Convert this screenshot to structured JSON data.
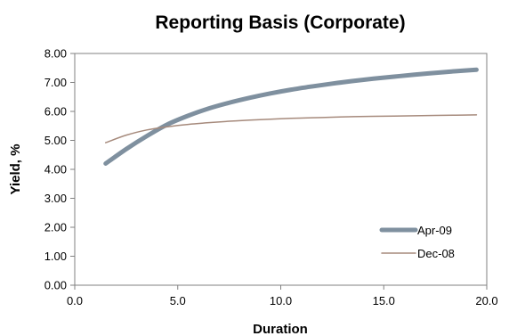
{
  "chart_data": {
    "type": "line",
    "title": "Reporting Basis (Corporate)",
    "xlabel": "Duration",
    "ylabel": "Yield, %",
    "xlim": [
      0,
      20
    ],
    "ylim": [
      0,
      8
    ],
    "x_ticks": [
      "0.0",
      "5.0",
      "10.0",
      "15.0",
      "20.0"
    ],
    "y_ticks": [
      "0.00",
      "1.00",
      "2.00",
      "3.00",
      "4.00",
      "5.00",
      "6.00",
      "7.00",
      "8.00"
    ],
    "grid": false,
    "legend_position": "bottom-right",
    "series": [
      {
        "name": "Apr-09",
        "color": "#7f909f",
        "x": [
          1.5,
          2.5,
          3.5,
          4.5,
          5.5,
          6.5,
          7.5,
          8.5,
          9.5,
          10.5,
          11.5,
          12.5,
          13.5,
          14.5,
          15.5,
          16.5,
          17.5,
          18.5,
          19.5
        ],
        "values": [
          4.2,
          4.7,
          5.15,
          5.55,
          5.85,
          6.1,
          6.3,
          6.47,
          6.62,
          6.75,
          6.86,
          6.96,
          7.05,
          7.13,
          7.2,
          7.27,
          7.33,
          7.39,
          7.44
        ]
      },
      {
        "name": "Dec-08",
        "color": "#a68a7c",
        "x": [
          1.5,
          2.5,
          3.5,
          4.5,
          5.5,
          6.5,
          7.5,
          8.5,
          9.5,
          10.5,
          11.5,
          12.5,
          13.5,
          14.5,
          15.5,
          16.5,
          17.5,
          18.5,
          19.5
        ],
        "values": [
          4.92,
          5.18,
          5.36,
          5.47,
          5.55,
          5.61,
          5.66,
          5.7,
          5.73,
          5.76,
          5.78,
          5.8,
          5.82,
          5.83,
          5.84,
          5.85,
          5.86,
          5.87,
          5.88
        ]
      }
    ]
  }
}
